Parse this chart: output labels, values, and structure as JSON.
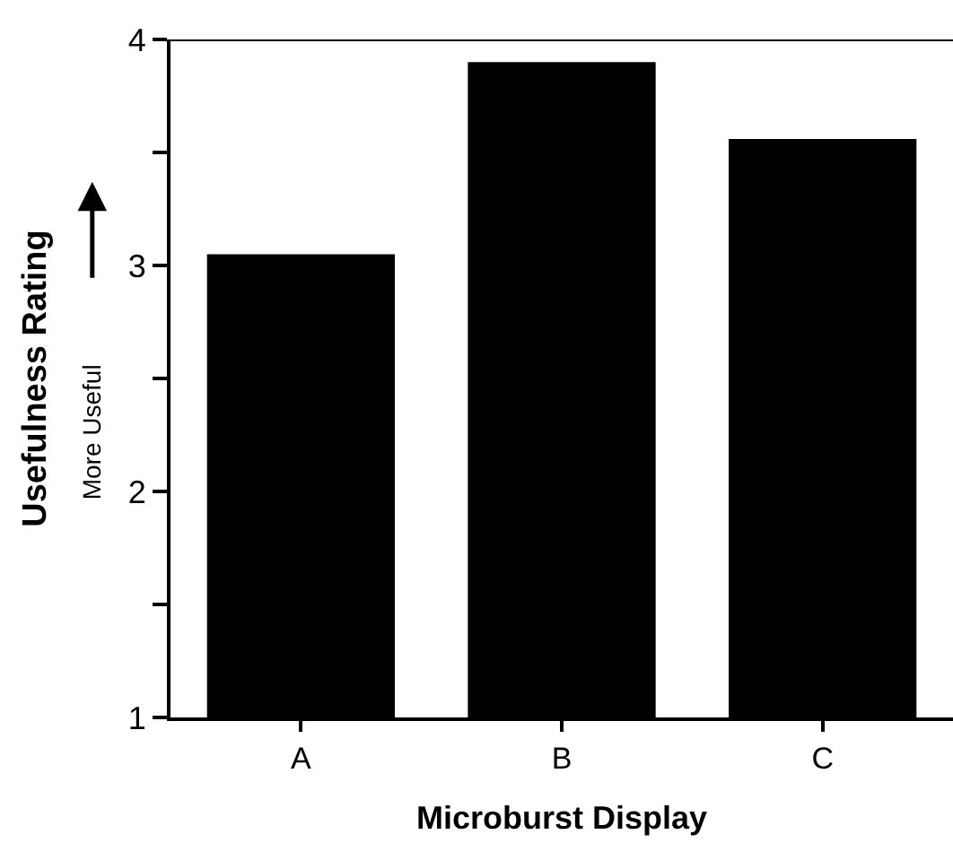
{
  "chart_data": {
    "type": "bar",
    "xlabel": "Microburst Display",
    "ylabel": "Usefulness Rating",
    "annotations": [
      "More Useful"
    ],
    "categories": [
      "A",
      "B",
      "C"
    ],
    "values": [
      3.05,
      3.9,
      3.56
    ],
    "color": "#000000",
    "ylim": [
      1,
      4
    ],
    "yticks": [
      1,
      {
        "value": 1.5,
        "label": null
      },
      2,
      {
        "value": 2.5,
        "label": null
      },
      3,
      {
        "value": 3.5,
        "label": null
      },
      4
    ]
  }
}
